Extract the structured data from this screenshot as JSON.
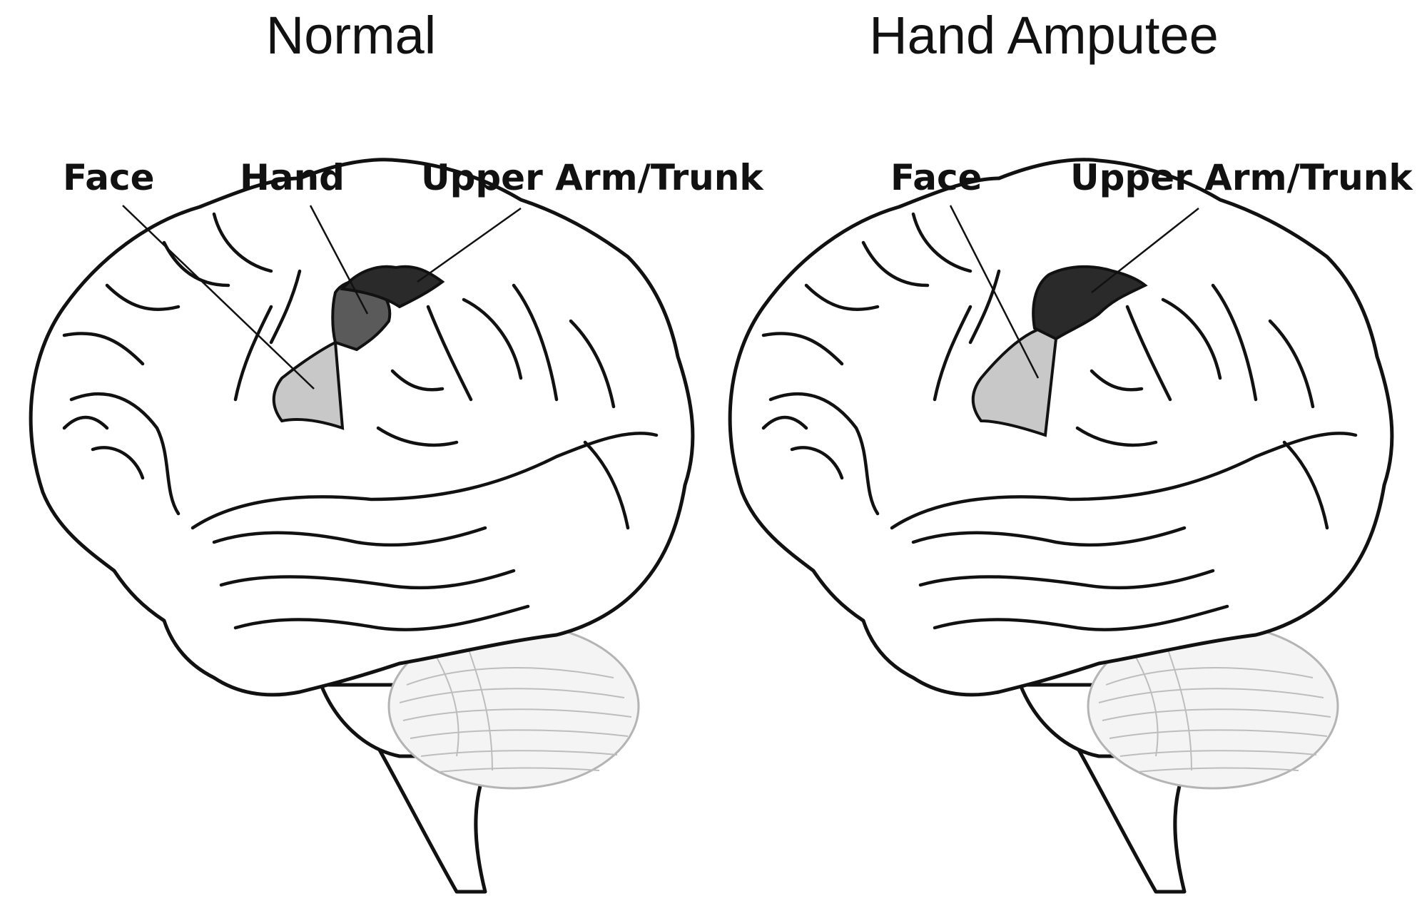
{
  "panels": {
    "normal": {
      "title": "Normal",
      "labels": {
        "face": "Face",
        "hand": "Hand",
        "trunk": "Upper Arm/Trunk"
      }
    },
    "amputee": {
      "title": "Hand Amputee",
      "labels": {
        "face": "Face",
        "trunk": "Upper Arm/Trunk"
      }
    }
  },
  "colors": {
    "face_region": "#c8c8c8",
    "hand_region": "#5a5a5a",
    "trunk_region": "#2a2a2a",
    "outline": "#111111",
    "cerebellum": "#f4f4f4"
  }
}
